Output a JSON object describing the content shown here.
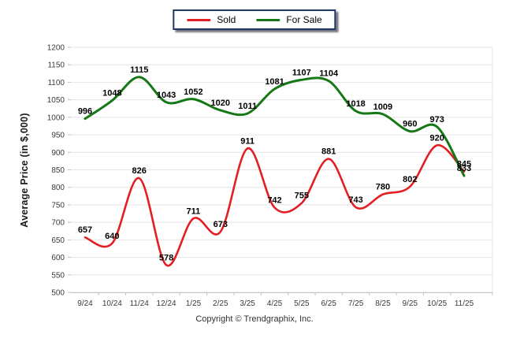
{
  "legend": {
    "items": [
      {
        "label": "Sold",
        "color": "#e31e24"
      },
      {
        "label": "For Sale",
        "color": "#157815"
      }
    ]
  },
  "chart_data": {
    "type": "line",
    "categories": [
      "9/24",
      "10/24",
      "11/24",
      "12/24",
      "1/25",
      "2/25",
      "3/25",
      "4/25",
      "5/25",
      "6/25",
      "7/25",
      "8/25",
      "9/25",
      "10/25",
      "11/25"
    ],
    "series": [
      {
        "name": "Sold",
        "color": "#e31e24",
        "values": [
          657,
          640,
          826,
          578,
          711,
          673,
          911,
          742,
          755,
          881,
          743,
          780,
          802,
          920,
          845
        ]
      },
      {
        "name": "For Sale",
        "color": "#157815",
        "values": [
          996,
          1048,
          1115,
          1043,
          1052,
          1020,
          1011,
          1081,
          1107,
          1104,
          1018,
          1009,
          960,
          973,
          833
        ]
      }
    ],
    "title": "",
    "xlabel": "",
    "ylabel": "Average Price (in $,000)",
    "ylim": [
      500,
      1200
    ],
    "ytick_step": 50,
    "grid": true,
    "legend_position": "top-center",
    "colors": {
      "gridline": "#e4e4e4",
      "axis": "#c4c4c4",
      "tick_text": "#3a3a3a",
      "data_label": "#000000"
    }
  },
  "footer": {
    "copyright": "Copyright © Trendgraphix, Inc."
  }
}
